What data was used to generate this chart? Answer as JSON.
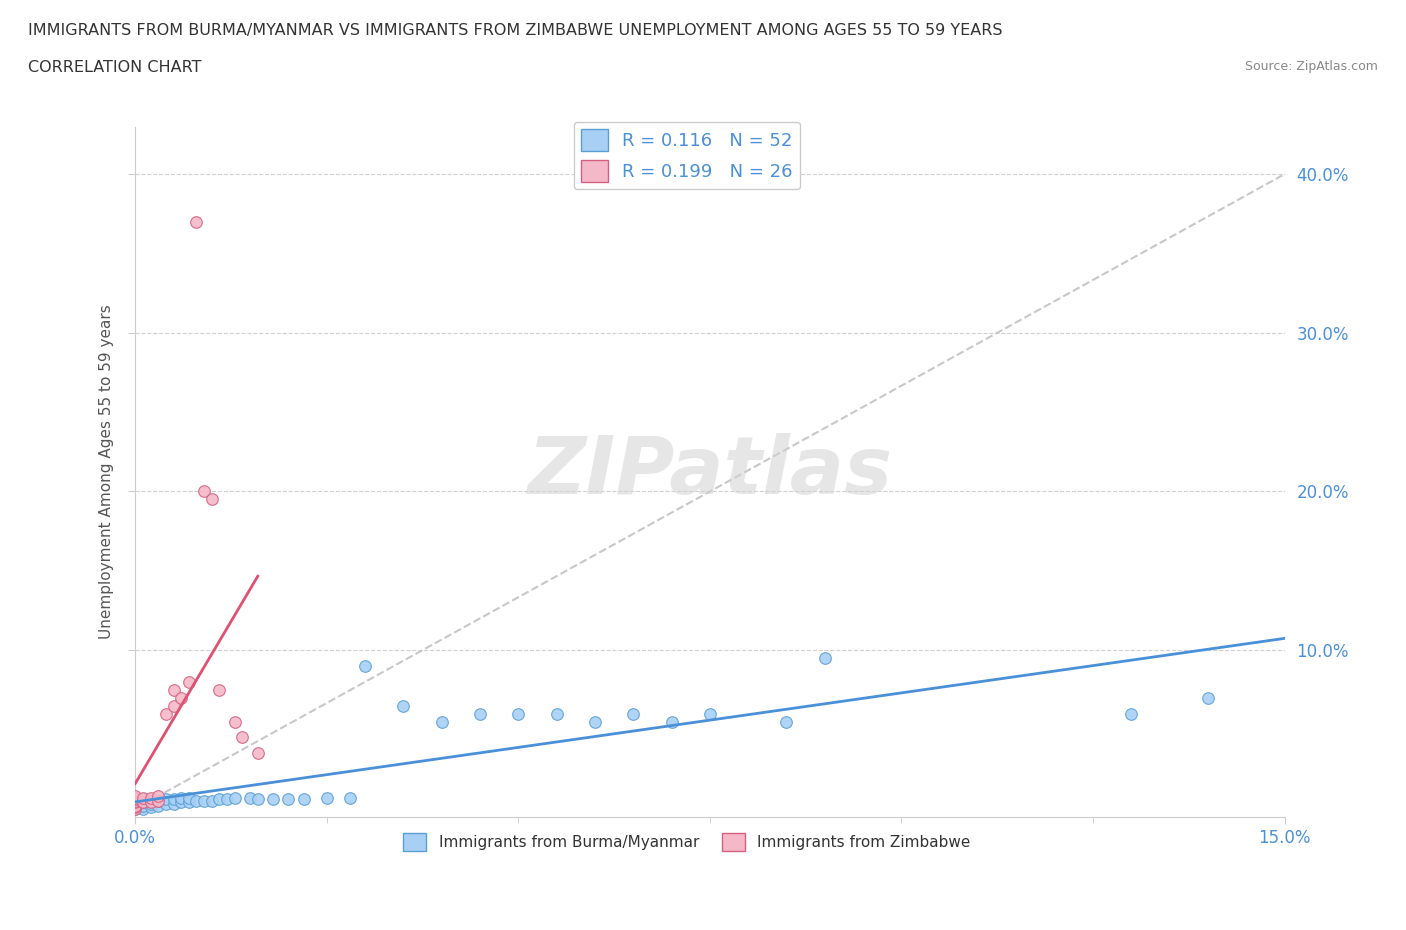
{
  "title_line1": "IMMIGRANTS FROM BURMA/MYANMAR VS IMMIGRANTS FROM ZIMBABWE UNEMPLOYMENT AMONG AGES 55 TO 59 YEARS",
  "title_line2": "CORRELATION CHART",
  "source": "Source: ZipAtlas.com",
  "ylabel": "Unemployment Among Ages 55 to 59 years",
  "ytick_values": [
    0.1,
    0.2,
    0.3,
    0.4
  ],
  "ytick_labels": [
    "10.0%",
    "20.0%",
    "30.0%",
    "40.0%"
  ],
  "xlim": [
    0.0,
    0.15
  ],
  "ylim": [
    -0.005,
    0.43
  ],
  "watermark_text": "ZIPatlas",
  "burma_color": "#a8d0f5",
  "zimbabwe_color": "#f5b8c8",
  "burma_edge_color": "#5a9fd4",
  "zimbabwe_edge_color": "#d46080",
  "burma_trend_color": "#4a90d9",
  "zimbabwe_trend_color": "#e05070",
  "ref_line_color": "#c8c8c8",
  "burma_x": [
    0.0,
    0.0,
    0.0,
    0.0,
    0.0,
    0.0,
    0.0,
    0.0,
    0.001,
    0.001,
    0.001,
    0.001,
    0.002,
    0.002,
    0.002,
    0.003,
    0.003,
    0.004,
    0.004,
    0.005,
    0.005,
    0.006,
    0.006,
    0.007,
    0.007,
    0.008,
    0.009,
    0.01,
    0.011,
    0.012,
    0.013,
    0.015,
    0.016,
    0.018,
    0.02,
    0.022,
    0.025,
    0.028,
    0.03,
    0.035,
    0.04,
    0.045,
    0.05,
    0.055,
    0.06,
    0.065,
    0.07,
    0.075,
    0.085,
    0.09,
    0.13,
    0.14
  ],
  "burma_y": [
    0.0,
    0.001,
    0.002,
    0.003,
    0.004,
    0.005,
    0.006,
    0.007,
    0.0,
    0.002,
    0.004,
    0.006,
    0.001,
    0.003,
    0.005,
    0.002,
    0.005,
    0.003,
    0.006,
    0.003,
    0.006,
    0.004,
    0.007,
    0.004,
    0.007,
    0.005,
    0.005,
    0.005,
    0.006,
    0.006,
    0.007,
    0.007,
    0.006,
    0.006,
    0.006,
    0.006,
    0.007,
    0.007,
    0.09,
    0.065,
    0.055,
    0.06,
    0.06,
    0.06,
    0.055,
    0.06,
    0.055,
    0.06,
    0.055,
    0.095,
    0.06,
    0.07
  ],
  "zimbabwe_x": [
    0.0,
    0.0,
    0.0,
    0.0,
    0.0,
    0.0,
    0.0,
    0.0,
    0.001,
    0.001,
    0.002,
    0.002,
    0.003,
    0.003,
    0.004,
    0.005,
    0.005,
    0.006,
    0.007,
    0.008,
    0.009,
    0.01,
    0.011,
    0.013,
    0.014,
    0.016
  ],
  "zimbabwe_y": [
    0.0,
    0.001,
    0.002,
    0.004,
    0.005,
    0.006,
    0.007,
    0.008,
    0.004,
    0.007,
    0.004,
    0.007,
    0.005,
    0.008,
    0.06,
    0.065,
    0.075,
    0.07,
    0.08,
    0.37,
    0.2,
    0.195,
    0.075,
    0.055,
    0.045,
    0.035
  ]
}
